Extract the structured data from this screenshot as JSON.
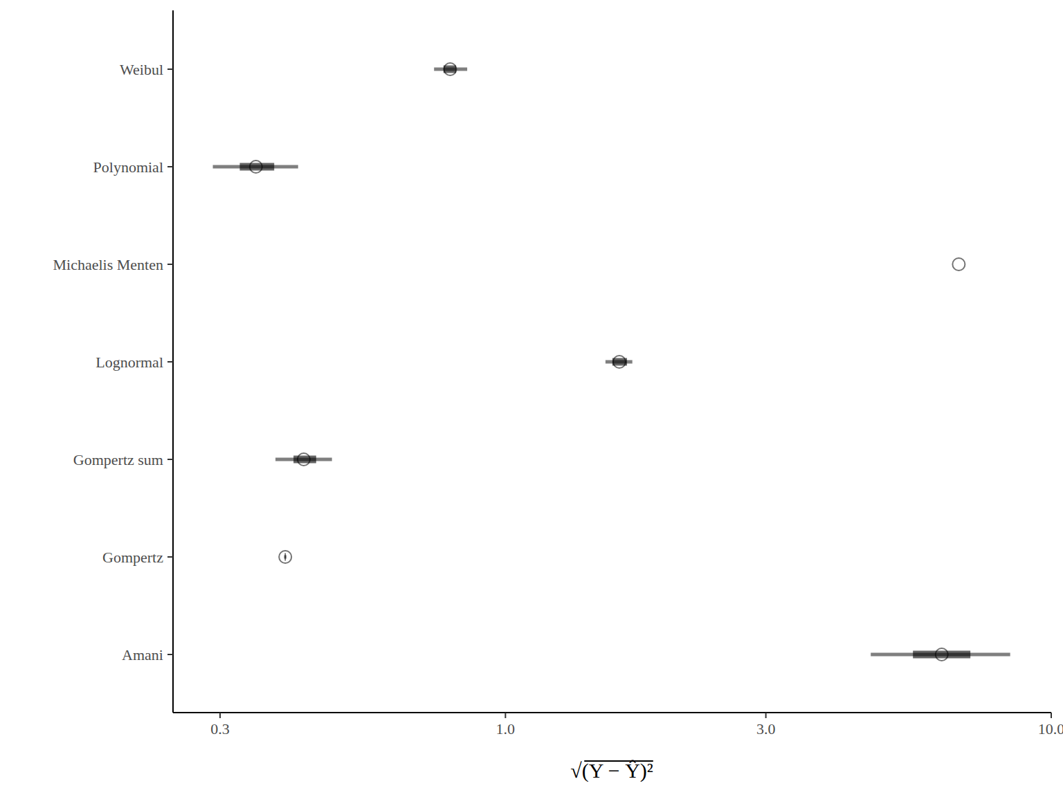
{
  "chart_data": {
    "type": "interval",
    "orientation": "horizontal",
    "log": "x",
    "x_label": "√(Y − Ŷ)²",
    "categories": [
      "Weibul",
      "Polynomial",
      "Michaelis Menten",
      "Lognormal",
      "Gompertz sum",
      "Gompertz",
      "Amani"
    ],
    "values": [
      0.792,
      0.349,
      6.77,
      1.617,
      0.427,
      0.395,
      6.3
    ],
    "lower_outer": [
      0.74,
      0.291,
      6.77,
      1.525,
      0.379,
      0.393,
      4.67
    ],
    "upper_outer": [
      0.851,
      0.417,
      6.77,
      1.708,
      0.481,
      0.397,
      8.41
    ],
    "lower_inner": [
      0.77,
      0.326,
      6.77,
      1.57,
      0.409,
      0.394,
      5.58
    ],
    "upper_inner": [
      0.812,
      0.377,
      6.77,
      1.67,
      0.45,
      0.396,
      7.11
    ],
    "xlim": [
      0.246,
      10
    ],
    "xticks": [
      {
        "value": 0.3,
        "label": "0.3"
      },
      {
        "value": 1,
        "label": "1.0"
      },
      {
        "value": 3,
        "label": "3.0"
      },
      {
        "value": 10,
        "label": "10.0"
      }
    ],
    "grid": false
  }
}
